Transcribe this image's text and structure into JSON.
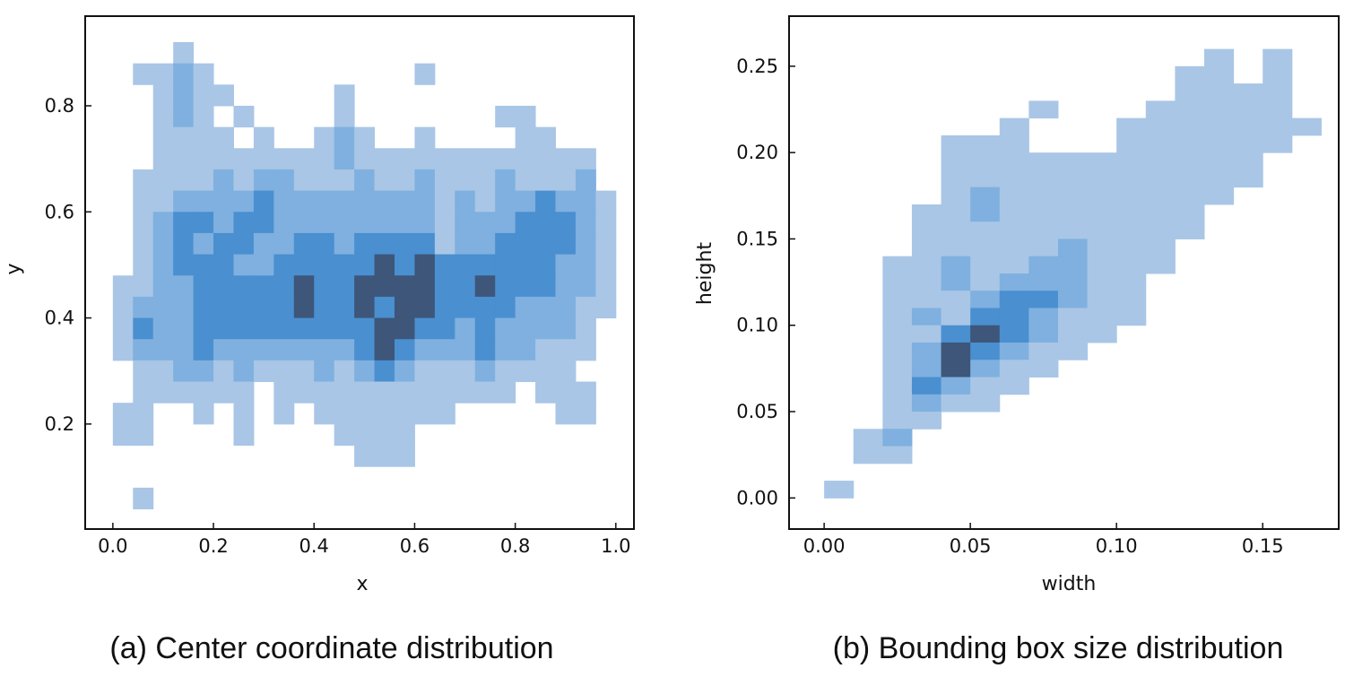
{
  "chart_data": [
    {
      "type": "heatmap",
      "caption": "(a) Center coordinate distribution",
      "xlabel": "x",
      "ylabel": "y",
      "xlim": [
        -0.055,
        1.036
      ],
      "ylim": [
        0.002,
        0.969
      ],
      "xticks": [
        "0.0",
        "0.2",
        "0.4",
        "0.6",
        "0.8",
        "1.0"
      ],
      "yticks": [
        "0.2",
        "0.4",
        "0.6",
        "0.8"
      ],
      "grid": false,
      "bins": {
        "x_start": 0.0,
        "x_width": 0.04,
        "y_top": 0.92,
        "y_height": 0.04
      },
      "density_levels_rows_top_to_bottom": [
        "0001000000000000000000000",
        "0112100000000001000000000",
        "0012110000010000000000000",
        "0012101000010000000110000",
        "0011110100121001000011000",
        "0011111111121111111111110",
        "0111121221112112111211120",
        "0112222322222222121223221",
        "0123323322222222122233321",
        "0123233223323333122333321",
        "0123332233333434333333221",
        "1122333334334444334333221",
        "1222333334334344333322211",
        "1322333333333443323222210",
        "1222322222223432223221110",
        "0112212111212321112111100",
        "0111111011111111111101110",
        "1100101010111111100000110",
        "1100001000011110000000000",
        "0000000000001110000000000",
        "0000000000000000000000000",
        "0100000000000000000000000"
      ]
    },
    {
      "type": "heatmap",
      "caption": "(b) Bounding box size distribution",
      "xlabel": "width",
      "ylabel": "height",
      "xlim": [
        -0.012,
        0.176
      ],
      "ylim": [
        -0.018,
        0.279
      ],
      "xticks": [
        "0.00",
        "0.05",
        "0.10",
        "0.15"
      ],
      "yticks": [
        "0.00",
        "0.05",
        "0.10",
        "0.15",
        "0.20",
        "0.25"
      ],
      "grid": false,
      "bins": {
        "x_start": 0.0,
        "x_width": 0.01,
        "y_top": 0.26,
        "y_height": 0.01
      },
      "density_levels_rows_top_to_bottom": [
        "00000000000001010",
        "00000000000011010",
        "00000000000011110",
        "00000001000111110",
        "00000010001111111",
        "00001110001111110",
        "00001111111111100",
        "00001111111111100",
        "00001211111111000",
        "00011211111110000",
        "00011111111110000",
        "00011111211100000",
        "00112112211100000",
        "00112122211000000",
        "00111233211000000",
        "00121332111000000",
        "00113432110000000",
        "00124321100000000",
        "00124211000000000",
        "00132110000000000",
        "00121100000000000",
        "00110000000000000",
        "01200000000000000",
        "01100000000000000",
        "00000000000000000",
        "10000000000000000"
      ]
    }
  ],
  "colors": {
    "levels": [
      "#ffffff",
      "#a9c6e6",
      "#7fb0df",
      "#4a8fd0",
      "#3d5679"
    ],
    "frame": "#111111"
  }
}
